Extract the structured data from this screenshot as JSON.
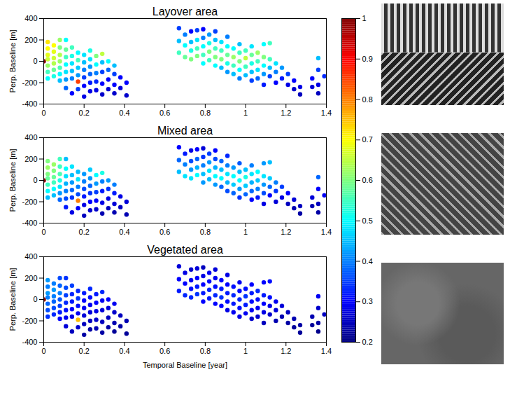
{
  "chart_data": {
    "type": "scatter",
    "xlabel": "Temporal Baseline [year]",
    "ylabel": "Perp. Baseline [m]",
    "xlim": [
      0,
      1.4
    ],
    "xticks": [
      0,
      0.2,
      0.4,
      0.6,
      0.8,
      1,
      1.2,
      1.4
    ],
    "ylim": [
      -400,
      400
    ],
    "yticks": [
      -400,
      -200,
      0,
      200,
      400
    ],
    "color": "jet",
    "colorbar": {
      "lim": [
        0.2,
        1
      ],
      "ticks": [
        0.2,
        0.3,
        0.4,
        0.5,
        0.6,
        0.7,
        0.8,
        0.9,
        1
      ]
    },
    "x": [
      0,
      0.02,
      0.02,
      0.02,
      0.02,
      0.02,
      0.02,
      0.02,
      0.05,
      0.05,
      0.05,
      0.05,
      0.05,
      0.05,
      0.08,
      0.08,
      0.08,
      0.08,
      0.08,
      0.08,
      0.08,
      0.11,
      0.11,
      0.11,
      0.11,
      0.11,
      0.11,
      0.11,
      0.14,
      0.14,
      0.14,
      0.14,
      0.14,
      0.14,
      0.17,
      0.17,
      0.17,
      0.17,
      0.17,
      0.17,
      0.2,
      0.2,
      0.2,
      0.2,
      0.2,
      0.2,
      0.23,
      0.23,
      0.23,
      0.23,
      0.23,
      0.23,
      0.26,
      0.26,
      0.26,
      0.26,
      0.26,
      0.29,
      0.29,
      0.29,
      0.29,
      0.29,
      0.32,
      0.32,
      0.32,
      0.32,
      0.35,
      0.35,
      0.35,
      0.35,
      0.38,
      0.38,
      0.41,
      0.41,
      0.67,
      0.67,
      0.67,
      0.7,
      0.7,
      0.7,
      0.73,
      0.73,
      0.73,
      0.73,
      0.76,
      0.76,
      0.76,
      0.76,
      0.79,
      0.79,
      0.79,
      0.79,
      0.79,
      0.82,
      0.82,
      0.82,
      0.82,
      0.85,
      0.85,
      0.85,
      0.85,
      0.85,
      0.88,
      0.88,
      0.88,
      0.88,
      0.91,
      0.91,
      0.91,
      0.91,
      0.91,
      0.94,
      0.94,
      0.94,
      0.94,
      0.97,
      0.97,
      0.97,
      0.97,
      0.97,
      1,
      1,
      1,
      1,
      1.03,
      1.03,
      1.03,
      1.03,
      1.03,
      1.06,
      1.06,
      1.06,
      1.06,
      1.09,
      1.09,
      1.09,
      1.09,
      1.09,
      1.12,
      1.12,
      1.12,
      1.12,
      1.15,
      1.15,
      1.15,
      1.18,
      1.18,
      1.21,
      1.21,
      1.24,
      1.24,
      1.27,
      1.27,
      1.33,
      1.33,
      1.36,
      1.36,
      1.36,
      1.36,
      1.39
    ],
    "y": [
      0,
      180,
      120,
      60,
      20,
      -40,
      -100,
      -160,
      150,
      90,
      30,
      -20,
      -80,
      -140,
      200,
      130,
      60,
      0,
      -60,
      -120,
      -180,
      200,
      110,
      40,
      -30,
      -100,
      -170,
      -250,
      130,
      50,
      -20,
      -90,
      -160,
      -300,
      80,
      10,
      -60,
      -130,
      -190,
      -260,
      60,
      -10,
      -80,
      -150,
      -230,
      -330,
      100,
      20,
      -50,
      -120,
      -200,
      -280,
      50,
      -30,
      -110,
      -190,
      -270,
      70,
      -10,
      -100,
      -210,
      -310,
      0,
      -80,
      -170,
      -260,
      -40,
      -120,
      -220,
      -300,
      -150,
      -250,
      -200,
      -320,
      310,
      190,
      80,
      250,
      150,
      40,
      280,
      180,
      100,
      20,
      290,
      200,
      120,
      50,
      300,
      220,
      140,
      60,
      -20,
      250,
      170,
      90,
      10,
      280,
      200,
      120,
      40,
      -40,
      180,
      100,
      20,
      -60,
      230,
      140,
      60,
      -20,
      -100,
      120,
      40,
      -40,
      -120,
      160,
      80,
      0,
      -80,
      -160,
      100,
      30,
      -50,
      -130,
      140,
      60,
      -20,
      -100,
      -180,
      80,
      0,
      -80,
      -160,
      160,
      40,
      -40,
      -120,
      -220,
      170,
      20,
      -60,
      -140,
      -20,
      -100,
      -200,
      -60,
      -160,
      -120,
      -220,
      -180,
      -260,
      -240,
      -310,
      -160,
      -240,
      30,
      -80,
      -220,
      -300,
      -140
    ],
    "series": [
      {
        "name": "Layover area",
        "values": [
          1,
          0.72,
          0.7,
          0.68,
          0.66,
          0.62,
          0.55,
          0.5,
          0.7,
          0.68,
          0.66,
          0.64,
          0.58,
          0.52,
          0.62,
          0.6,
          0.64,
          0.62,
          0.56,
          0.5,
          0.45,
          0.5,
          0.58,
          0.55,
          0.5,
          0.48,
          0.42,
          0.38,
          0.55,
          0.52,
          0.48,
          0.45,
          0.4,
          0.3,
          0.5,
          0.55,
          0.46,
          0.42,
          0.85,
          0.35,
          0.48,
          0.45,
          0.4,
          0.35,
          0.3,
          0.28,
          0.52,
          0.48,
          0.42,
          0.38,
          0.32,
          0.28,
          0.6,
          0.5,
          0.4,
          0.33,
          0.28,
          0.65,
          0.45,
          0.35,
          0.3,
          0.26,
          0.5,
          0.38,
          0.3,
          0.27,
          0.45,
          0.35,
          0.3,
          0.26,
          0.3,
          0.27,
          0.3,
          0.26,
          0.35,
          0.45,
          0.55,
          0.4,
          0.5,
          0.58,
          0.3,
          0.45,
          0.52,
          0.6,
          0.35,
          0.48,
          0.55,
          0.6,
          0.3,
          0.4,
          0.5,
          0.55,
          0.5,
          0.42,
          0.52,
          0.6,
          0.55,
          0.35,
          0.45,
          0.55,
          0.6,
          0.5,
          0.48,
          0.55,
          0.6,
          0.45,
          0.4,
          0.5,
          0.58,
          0.52,
          0.42,
          0.5,
          0.62,
          0.55,
          0.45,
          0.45,
          0.55,
          0.6,
          0.5,
          0.4,
          0.55,
          0.65,
          0.55,
          0.45,
          0.48,
          0.58,
          0.52,
          0.45,
          0.35,
          0.62,
          0.55,
          0.48,
          0.38,
          0.5,
          0.6,
          0.5,
          0.42,
          0.32,
          0.55,
          0.55,
          0.45,
          0.35,
          0.48,
          0.4,
          0.3,
          0.42,
          0.32,
          0.35,
          0.28,
          0.3,
          0.26,
          0.28,
          0.25,
          0.3,
          0.27,
          0.45,
          0.35,
          0.28,
          0.25,
          0.33
        ]
      },
      {
        "name": "Mixed area",
        "values": [
          1,
          0.6,
          0.62,
          0.6,
          0.58,
          0.55,
          0.5,
          0.45,
          0.62,
          0.6,
          0.58,
          0.55,
          0.5,
          0.45,
          0.55,
          0.55,
          0.56,
          0.52,
          0.48,
          0.42,
          0.38,
          0.45,
          0.5,
          0.48,
          0.44,
          0.4,
          0.36,
          0.32,
          0.48,
          0.45,
          0.42,
          0.38,
          0.34,
          0.28,
          0.45,
          0.48,
          0.4,
          0.36,
          0.8,
          0.3,
          0.42,
          0.4,
          0.36,
          0.32,
          0.28,
          0.25,
          0.46,
          0.42,
          0.38,
          0.34,
          0.3,
          0.26,
          0.5,
          0.42,
          0.35,
          0.3,
          0.26,
          0.52,
          0.4,
          0.32,
          0.28,
          0.24,
          0.42,
          0.34,
          0.28,
          0.25,
          0.4,
          0.32,
          0.27,
          0.24,
          0.28,
          0.25,
          0.27,
          0.24,
          0.3,
          0.38,
          0.45,
          0.32,
          0.4,
          0.48,
          0.28,
          0.36,
          0.42,
          0.48,
          0.3,
          0.38,
          0.44,
          0.5,
          0.27,
          0.34,
          0.4,
          0.45,
          0.42,
          0.35,
          0.42,
          0.48,
          0.45,
          0.3,
          0.36,
          0.44,
          0.5,
          0.42,
          0.38,
          0.45,
          0.5,
          0.38,
          0.33,
          0.4,
          0.48,
          0.44,
          0.36,
          0.42,
          0.5,
          0.46,
          0.38,
          0.37,
          0.45,
          0.5,
          0.42,
          0.34,
          0.45,
          0.52,
          0.46,
          0.38,
          0.4,
          0.48,
          0.44,
          0.38,
          0.3,
          0.5,
          0.46,
          0.4,
          0.32,
          0.42,
          0.48,
          0.42,
          0.36,
          0.28,
          0.45,
          0.46,
          0.38,
          0.3,
          0.4,
          0.34,
          0.27,
          0.35,
          0.28,
          0.3,
          0.25,
          0.27,
          0.24,
          0.25,
          0.23,
          0.27,
          0.24,
          0.38,
          0.3,
          0.25,
          0.23,
          0.29
        ]
      },
      {
        "name": "Vegetated area",
        "values": [
          1,
          0.42,
          0.4,
          0.42,
          0.4,
          0.38,
          0.36,
          0.34,
          0.4,
          0.42,
          0.4,
          0.38,
          0.36,
          0.33,
          0.36,
          0.38,
          0.4,
          0.37,
          0.35,
          0.32,
          0.3,
          0.34,
          0.36,
          0.35,
          0.33,
          0.31,
          0.29,
          0.27,
          0.35,
          0.33,
          0.32,
          0.3,
          0.28,
          0.25,
          0.33,
          0.34,
          0.31,
          0.29,
          0.75,
          0.26,
          0.32,
          0.3,
          0.29,
          0.27,
          0.25,
          0.23,
          0.33,
          0.31,
          0.29,
          0.27,
          0.25,
          0.23,
          0.32,
          0.3,
          0.28,
          0.26,
          0.24,
          0.33,
          0.29,
          0.27,
          0.25,
          0.23,
          0.3,
          0.27,
          0.25,
          0.23,
          0.29,
          0.26,
          0.24,
          0.22,
          0.25,
          0.23,
          0.24,
          0.22,
          0.27,
          0.3,
          0.32,
          0.28,
          0.3,
          0.33,
          0.26,
          0.29,
          0.31,
          0.33,
          0.27,
          0.3,
          0.32,
          0.34,
          0.25,
          0.28,
          0.3,
          0.32,
          0.3,
          0.29,
          0.31,
          0.33,
          0.32,
          0.27,
          0.29,
          0.31,
          0.33,
          0.3,
          0.3,
          0.32,
          0.34,
          0.3,
          0.28,
          0.3,
          0.32,
          0.31,
          0.28,
          0.31,
          0.33,
          0.32,
          0.29,
          0.29,
          0.31,
          0.33,
          0.31,
          0.28,
          0.31,
          0.34,
          0.32,
          0.29,
          0.3,
          0.32,
          0.31,
          0.29,
          0.26,
          0.33,
          0.31,
          0.29,
          0.26,
          0.3,
          0.32,
          0.3,
          0.28,
          0.25,
          0.31,
          0.31,
          0.28,
          0.26,
          0.29,
          0.27,
          0.24,
          0.27,
          0.24,
          0.25,
          0.23,
          0.24,
          0.22,
          0.23,
          0.22,
          0.24,
          0.22,
          0.29,
          0.26,
          0.23,
          0.21,
          0.25
        ]
      }
    ]
  }
}
